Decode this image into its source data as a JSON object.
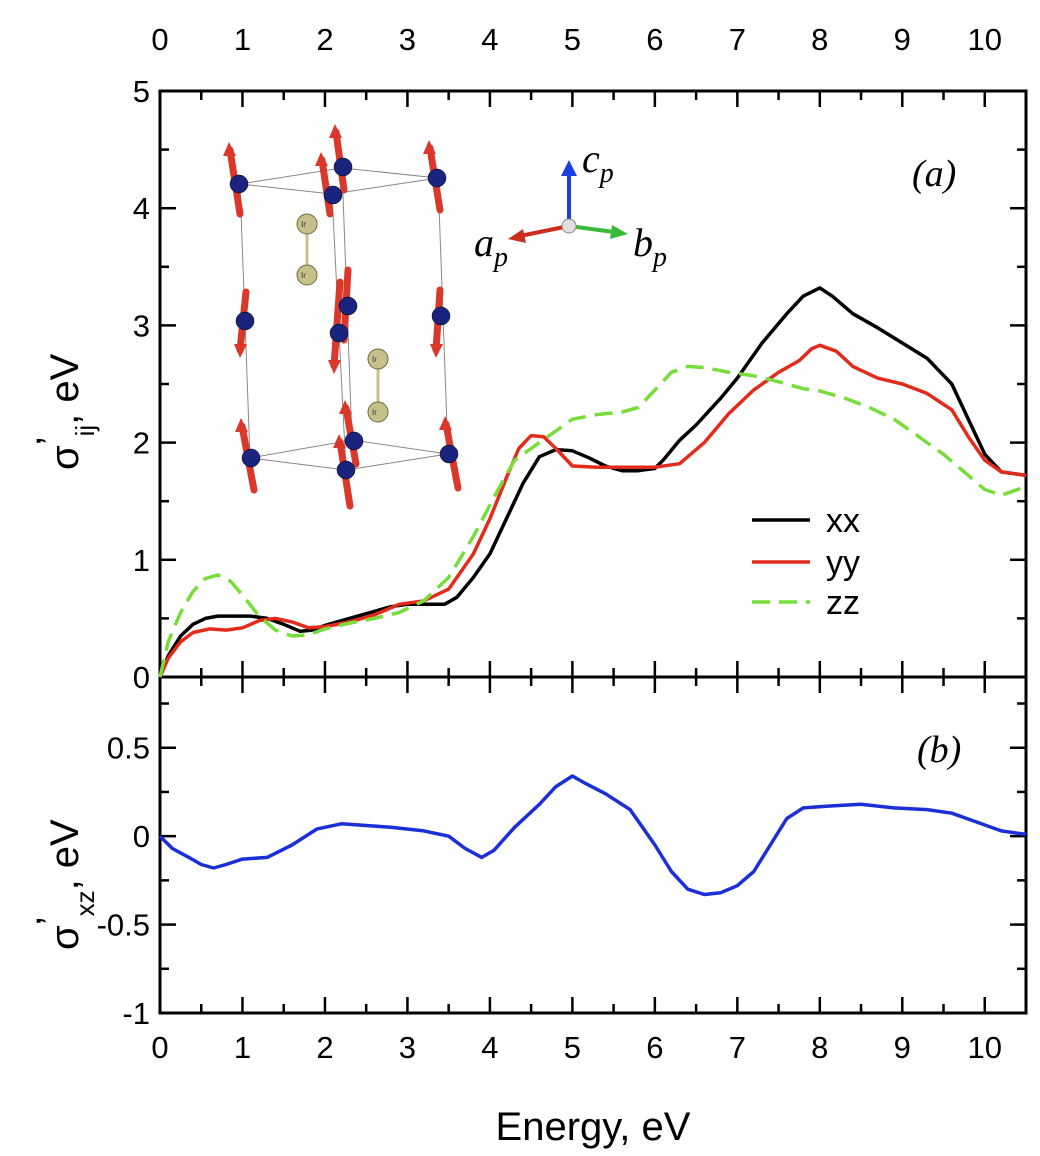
{
  "chart_data": [
    {
      "panel": "(a)",
      "type": "line",
      "xlabel": "",
      "ylabel_main": "σ",
      "ylabel_prime": "’",
      "ylabel_sub": "ij",
      "ylabel_unit": ", eV",
      "xlim": [
        0,
        10.5
      ],
      "ylim": [
        0,
        5
      ],
      "x_ticks": [
        0,
        1,
        2,
        3,
        4,
        5,
        6,
        7,
        8,
        9,
        10
      ],
      "y_ticks": [
        0,
        1,
        2,
        3,
        4,
        5
      ],
      "legend_position": "right",
      "series": [
        {
          "name": "xx",
          "color": "#000000",
          "dash": "solid",
          "points": [
            [
              0,
              0
            ],
            [
              0.1,
              0.18
            ],
            [
              0.25,
              0.35
            ],
            [
              0.4,
              0.45
            ],
            [
              0.55,
              0.5
            ],
            [
              0.7,
              0.52
            ],
            [
              0.9,
              0.52
            ],
            [
              1.1,
              0.52
            ],
            [
              1.3,
              0.5
            ],
            [
              1.5,
              0.45
            ],
            [
              1.7,
              0.39
            ],
            [
              1.85,
              0.4
            ],
            [
              2.0,
              0.44
            ],
            [
              2.2,
              0.48
            ],
            [
              2.5,
              0.54
            ],
            [
              2.8,
              0.6
            ],
            [
              3.0,
              0.62
            ],
            [
              3.2,
              0.62
            ],
            [
              3.45,
              0.62
            ],
            [
              3.6,
              0.68
            ],
            [
              3.8,
              0.85
            ],
            [
              4.0,
              1.05
            ],
            [
              4.2,
              1.35
            ],
            [
              4.4,
              1.65
            ],
            [
              4.6,
              1.88
            ],
            [
              4.8,
              1.94
            ],
            [
              5.0,
              1.93
            ],
            [
              5.2,
              1.87
            ],
            [
              5.4,
              1.8
            ],
            [
              5.6,
              1.76
            ],
            [
              5.8,
              1.76
            ],
            [
              6.0,
              1.78
            ],
            [
              6.1,
              1.85
            ],
            [
              6.3,
              2.02
            ],
            [
              6.5,
              2.15
            ],
            [
              6.8,
              2.38
            ],
            [
              7.0,
              2.55
            ],
            [
              7.3,
              2.85
            ],
            [
              7.6,
              3.1
            ],
            [
              7.8,
              3.25
            ],
            [
              8.0,
              3.32
            ],
            [
              8.15,
              3.25
            ],
            [
              8.4,
              3.1
            ],
            [
              8.7,
              2.98
            ],
            [
              9.0,
              2.85
            ],
            [
              9.3,
              2.72
            ],
            [
              9.6,
              2.5
            ],
            [
              9.8,
              2.2
            ],
            [
              10.0,
              1.9
            ],
            [
              10.2,
              1.75
            ],
            [
              10.4,
              1.73
            ],
            [
              10.5,
              1.72
            ]
          ]
        },
        {
          "name": "yy",
          "color": "#e32b1c",
          "dash": "solid",
          "points": [
            [
              0,
              0
            ],
            [
              0.1,
              0.16
            ],
            [
              0.25,
              0.3
            ],
            [
              0.4,
              0.38
            ],
            [
              0.6,
              0.41
            ],
            [
              0.8,
              0.4
            ],
            [
              1.0,
              0.42
            ],
            [
              1.2,
              0.48
            ],
            [
              1.4,
              0.5
            ],
            [
              1.6,
              0.47
            ],
            [
              1.8,
              0.42
            ],
            [
              2.0,
              0.43
            ],
            [
              2.3,
              0.47
            ],
            [
              2.6,
              0.53
            ],
            [
              2.9,
              0.62
            ],
            [
              3.2,
              0.65
            ],
            [
              3.5,
              0.75
            ],
            [
              3.8,
              1.05
            ],
            [
              4.0,
              1.35
            ],
            [
              4.2,
              1.7
            ],
            [
              4.35,
              1.95
            ],
            [
              4.5,
              2.06
            ],
            [
              4.65,
              2.05
            ],
            [
              4.8,
              1.95
            ],
            [
              5.0,
              1.8
            ],
            [
              5.3,
              1.79
            ],
            [
              5.6,
              1.79
            ],
            [
              6.0,
              1.79
            ],
            [
              6.3,
              1.82
            ],
            [
              6.6,
              2.0
            ],
            [
              6.9,
              2.25
            ],
            [
              7.2,
              2.45
            ],
            [
              7.5,
              2.6
            ],
            [
              7.75,
              2.7
            ],
            [
              7.9,
              2.8
            ],
            [
              8.0,
              2.83
            ],
            [
              8.2,
              2.78
            ],
            [
              8.4,
              2.65
            ],
            [
              8.7,
              2.55
            ],
            [
              9.0,
              2.5
            ],
            [
              9.3,
              2.42
            ],
            [
              9.6,
              2.28
            ],
            [
              9.8,
              2.05
            ],
            [
              10.0,
              1.85
            ],
            [
              10.2,
              1.75
            ],
            [
              10.5,
              1.72
            ]
          ]
        },
        {
          "name": "zz",
          "color": "#77dd3a",
          "dash": "dashed",
          "points": [
            [
              0,
              0
            ],
            [
              0.1,
              0.3
            ],
            [
              0.25,
              0.55
            ],
            [
              0.4,
              0.73
            ],
            [
              0.55,
              0.84
            ],
            [
              0.7,
              0.87
            ],
            [
              0.85,
              0.82
            ],
            [
              1.0,
              0.7
            ],
            [
              1.2,
              0.52
            ],
            [
              1.4,
              0.4
            ],
            [
              1.6,
              0.35
            ],
            [
              1.8,
              0.36
            ],
            [
              2.0,
              0.41
            ],
            [
              2.3,
              0.46
            ],
            [
              2.6,
              0.5
            ],
            [
              2.9,
              0.55
            ],
            [
              3.2,
              0.65
            ],
            [
              3.5,
              0.85
            ],
            [
              3.8,
              1.2
            ],
            [
              4.1,
              1.6
            ],
            [
              4.3,
              1.85
            ],
            [
              4.5,
              1.95
            ],
            [
              4.8,
              2.1
            ],
            [
              5.0,
              2.2
            ],
            [
              5.3,
              2.24
            ],
            [
              5.6,
              2.26
            ],
            [
              5.8,
              2.3
            ],
            [
              6.0,
              2.45
            ],
            [
              6.2,
              2.6
            ],
            [
              6.4,
              2.65
            ],
            [
              6.6,
              2.64
            ],
            [
              6.9,
              2.6
            ],
            [
              7.2,
              2.57
            ],
            [
              7.5,
              2.52
            ],
            [
              7.8,
              2.46
            ],
            [
              8.0,
              2.44
            ],
            [
              8.3,
              2.38
            ],
            [
              8.6,
              2.3
            ],
            [
              8.9,
              2.2
            ],
            [
              9.2,
              2.05
            ],
            [
              9.5,
              1.9
            ],
            [
              9.8,
              1.72
            ],
            [
              10.0,
              1.6
            ],
            [
              10.2,
              1.55
            ],
            [
              10.4,
              1.6
            ],
            [
              10.5,
              1.63
            ]
          ]
        }
      ]
    },
    {
      "panel": "(b)",
      "type": "line",
      "xlabel": "Energy, eV",
      "ylabel_main": "σ",
      "ylabel_prime": "’",
      "ylabel_sub": "xz",
      "ylabel_unit": ", eV",
      "xlim": [
        0,
        10.5
      ],
      "ylim": [
        -1,
        0.9
      ],
      "x_ticks": [
        0,
        1,
        2,
        3,
        4,
        5,
        6,
        7,
        8,
        9,
        10
      ],
      "y_ticks": [
        -1,
        -0.5,
        0,
        0.5
      ],
      "y_tick_labels": [
        "-1",
        "-0.5",
        "0",
        "0.5"
      ],
      "series": [
        {
          "name": "xz",
          "color": "#1a2fd6",
          "dash": "solid",
          "points": [
            [
              0,
              0
            ],
            [
              0.15,
              -0.07
            ],
            [
              0.35,
              -0.12
            ],
            [
              0.5,
              -0.16
            ],
            [
              0.65,
              -0.18
            ],
            [
              0.8,
              -0.16
            ],
            [
              1.0,
              -0.13
            ],
            [
              1.3,
              -0.12
            ],
            [
              1.6,
              -0.05
            ],
            [
              1.9,
              0.04
            ],
            [
              2.2,
              0.07
            ],
            [
              2.5,
              0.06
            ],
            [
              2.8,
              0.05
            ],
            [
              3.2,
              0.03
            ],
            [
              3.5,
              0.0
            ],
            [
              3.7,
              -0.07
            ],
            [
              3.9,
              -0.12
            ],
            [
              4.05,
              -0.08
            ],
            [
              4.3,
              0.05
            ],
            [
              4.6,
              0.18
            ],
            [
              4.8,
              0.28
            ],
            [
              5.0,
              0.34
            ],
            [
              5.15,
              0.3
            ],
            [
              5.4,
              0.24
            ],
            [
              5.7,
              0.15
            ],
            [
              6.0,
              -0.05
            ],
            [
              6.2,
              -0.2
            ],
            [
              6.4,
              -0.3
            ],
            [
              6.6,
              -0.33
            ],
            [
              6.8,
              -0.32
            ],
            [
              7.0,
              -0.28
            ],
            [
              7.2,
              -0.2
            ],
            [
              7.4,
              -0.05
            ],
            [
              7.6,
              0.1
            ],
            [
              7.8,
              0.16
            ],
            [
              8.1,
              0.17
            ],
            [
              8.5,
              0.18
            ],
            [
              8.9,
              0.16
            ],
            [
              9.3,
              0.15
            ],
            [
              9.6,
              0.13
            ],
            [
              9.9,
              0.08
            ],
            [
              10.2,
              0.03
            ],
            [
              10.5,
              0.01
            ]
          ]
        }
      ]
    }
  ],
  "inset": {
    "axis_labels": {
      "c": {
        "letter": "c",
        "sub": "p"
      },
      "a": {
        "letter": "a",
        "sub": "p"
      },
      "b": {
        "letter": "b",
        "sub": "p"
      }
    },
    "ion_label": "Ir",
    "colors": {
      "spin": "#d9382a",
      "o_atom": "#1a237e",
      "ir_atom": "#c8c08a",
      "c_axis": "#1e3de0",
      "a_axis": "#cc2d1e",
      "b_axis": "#3ab83a"
    }
  }
}
